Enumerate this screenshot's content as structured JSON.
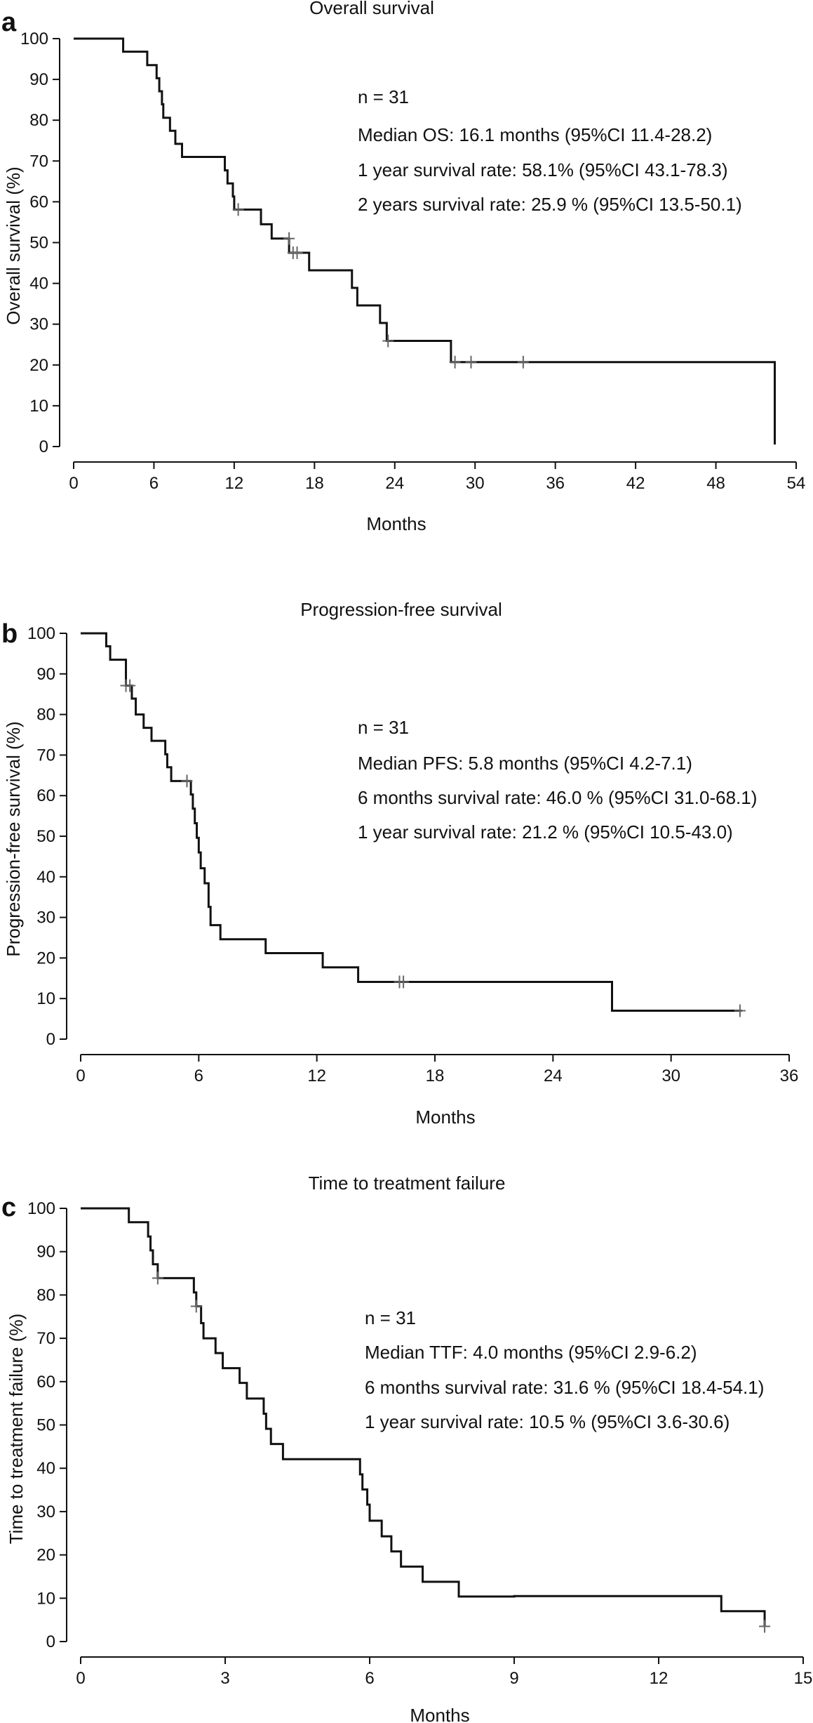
{
  "chart_data": [
    {
      "type": "line",
      "panel": "a",
      "title": "Overall survival",
      "xlabel": "Months",
      "ylabel": "Overall survival (%)",
      "xlim": [
        0,
        54
      ],
      "ylim": [
        0,
        100
      ],
      "xticks": [
        0,
        6,
        12,
        18,
        24,
        30,
        36,
        42,
        48,
        54
      ],
      "yticks": [
        0,
        10,
        20,
        30,
        40,
        50,
        60,
        70,
        80,
        90,
        100
      ],
      "annotations": [
        "n = 31",
        "Median OS: 16.1 months (95%CI 11.4-28.2)",
        "1 year survival rate: 58.1% (95%CI 43.1-78.3)",
        "2 years survival rate: 25.9 % (95%CI 13.5-50.1)"
      ],
      "steps": [
        [
          0,
          100
        ],
        [
          3.7,
          96.8
        ],
        [
          5.5,
          93.5
        ],
        [
          6.2,
          90.3
        ],
        [
          6.4,
          87.1
        ],
        [
          6.6,
          83.9
        ],
        [
          6.7,
          80.6
        ],
        [
          7.2,
          77.4
        ],
        [
          7.6,
          74.2
        ],
        [
          8.1,
          71.0
        ],
        [
          11.3,
          67.7
        ],
        [
          11.5,
          64.5
        ],
        [
          11.9,
          61.3
        ],
        [
          12.0,
          58.1
        ],
        [
          14.0,
          54.5
        ],
        [
          14.8,
          51.0
        ],
        [
          16.1,
          47.5
        ],
        [
          17.6,
          43.2
        ],
        [
          20.8,
          38.9
        ],
        [
          21.2,
          34.6
        ],
        [
          22.9,
          30.3
        ],
        [
          23.4,
          25.9
        ],
        [
          28.2,
          20.7
        ],
        [
          52.4,
          20.7
        ],
        [
          52.4,
          0.5
        ]
      ],
      "censored": [
        [
          12.3,
          58.1
        ],
        [
          16.1,
          51.0
        ],
        [
          16.4,
          47.5
        ],
        [
          16.7,
          47.5
        ],
        [
          23.5,
          25.9
        ],
        [
          28.5,
          20.7
        ],
        [
          29.7,
          20.7
        ],
        [
          33.6,
          20.7
        ]
      ]
    },
    {
      "type": "line",
      "panel": "b",
      "title": "Progression-free survival",
      "xlabel": "Months",
      "ylabel": "Progression-free survival (%)",
      "xlim": [
        0,
        36
      ],
      "ylim": [
        0,
        100
      ],
      "xticks": [
        0,
        6,
        12,
        18,
        24,
        30,
        36
      ],
      "yticks": [
        0,
        10,
        20,
        30,
        40,
        50,
        60,
        70,
        80,
        90,
        100
      ],
      "annotations": [
        "n = 31",
        "Median PFS: 5.8 months (95%CI 4.2-7.1)",
        "6 months survival rate: 46.0 % (95%CI 31.0-68.1)",
        "1 year survival rate: 21.2 % (95%CI 10.5-43.0)"
      ],
      "steps": [
        [
          0,
          100
        ],
        [
          1.3,
          96.8
        ],
        [
          1.5,
          93.5
        ],
        [
          2.3,
          87.1
        ],
        [
          2.6,
          83.9
        ],
        [
          2.8,
          80.0
        ],
        [
          3.2,
          76.7
        ],
        [
          3.6,
          73.5
        ],
        [
          4.3,
          70.2
        ],
        [
          4.4,
          67.0
        ],
        [
          4.6,
          63.6
        ],
        [
          5.6,
          60.3
        ],
        [
          5.7,
          56.8
        ],
        [
          5.8,
          53.2
        ],
        [
          5.9,
          49.6
        ],
        [
          6.0,
          46.0
        ],
        [
          6.1,
          42.1
        ],
        [
          6.3,
          38.4
        ],
        [
          6.5,
          32.6
        ],
        [
          6.6,
          28.1
        ],
        [
          7.1,
          24.6
        ],
        [
          9.4,
          21.2
        ],
        [
          12.3,
          17.7
        ],
        [
          14.1,
          14.1
        ],
        [
          27.0,
          7.0
        ],
        [
          33.6,
          7.0
        ]
      ],
      "censored": [
        [
          2.3,
          87.1
        ],
        [
          2.5,
          87.1
        ],
        [
          5.4,
          63.6
        ],
        [
          16.2,
          14.1
        ],
        [
          16.4,
          14.1
        ],
        [
          33.5,
          7.0
        ]
      ]
    },
    {
      "type": "line",
      "panel": "c",
      "title": "Time to treatment failure",
      "xlabel": "Months",
      "ylabel": "Time to treatment failure (%)",
      "xlim": [
        0,
        15
      ],
      "ylim": [
        0,
        100
      ],
      "xticks": [
        0,
        3,
        6,
        9,
        12,
        15
      ],
      "yticks": [
        0,
        10,
        20,
        30,
        40,
        50,
        60,
        70,
        80,
        90,
        100
      ],
      "annotations": [
        "n = 31",
        "Median TTF: 4.0 months (95%CI 2.9-6.2)",
        "6 months survival rate: 31.6 % (95%CI 18.4-54.1)",
        "1 year survival rate: 10.5 % (95%CI 3.6-30.6)"
      ],
      "steps": [
        [
          0,
          100
        ],
        [
          1.0,
          96.8
        ],
        [
          1.4,
          93.5
        ],
        [
          1.45,
          90.3
        ],
        [
          1.5,
          87.1
        ],
        [
          1.6,
          83.9
        ],
        [
          2.35,
          80.6
        ],
        [
          2.4,
          77.4
        ],
        [
          2.5,
          73.5
        ],
        [
          2.55,
          70.0
        ],
        [
          2.8,
          66.6
        ],
        [
          2.95,
          63.1
        ],
        [
          3.3,
          59.7
        ],
        [
          3.45,
          56.1
        ],
        [
          3.8,
          52.6
        ],
        [
          3.85,
          49.1
        ],
        [
          3.95,
          45.6
        ],
        [
          4.2,
          42.1
        ],
        [
          5.8,
          38.6
        ],
        [
          5.85,
          35.1
        ],
        [
          5.95,
          31.6
        ],
        [
          6.0,
          27.9
        ],
        [
          6.25,
          24.3
        ],
        [
          6.45,
          20.8
        ],
        [
          6.65,
          17.3
        ],
        [
          7.1,
          13.8
        ],
        [
          7.85,
          10.4
        ],
        [
          9.0,
          10.5
        ],
        [
          13.3,
          7.0
        ],
        [
          14.2,
          3.5
        ]
      ],
      "censored": [
        [
          1.6,
          83.9
        ],
        [
          2.4,
          77.4
        ],
        [
          14.2,
          3.5
        ]
      ]
    }
  ]
}
